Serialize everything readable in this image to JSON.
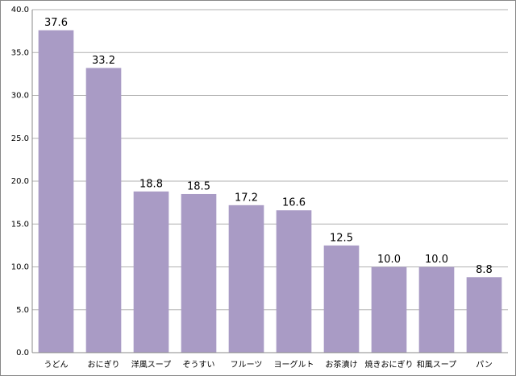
{
  "chart_data": {
    "type": "bar",
    "categories": [
      "うどん",
      "おにぎり",
      "洋風スープ",
      "ぞうすい",
      "フルーツ",
      "ヨーグルト",
      "お茶漬け",
      "焼きおにぎり",
      "和風スープ",
      "パン"
    ],
    "values": [
      37.6,
      33.2,
      18.8,
      18.5,
      17.2,
      16.6,
      12.5,
      10,
      10,
      8.8
    ],
    "value_labels": [
      "37.6",
      "33.2",
      "18.8",
      "18.5",
      "17.2",
      "16.6",
      "12.5",
      "10.0",
      "10.0",
      "8.8"
    ],
    "color": "#a99bc5",
    "ylim": [
      0,
      40
    ],
    "yticks": [
      {
        "value": 0,
        "label": "0.0"
      },
      {
        "value": 5,
        "label": "5.0"
      },
      {
        "value": 10,
        "label": "10.0"
      },
      {
        "value": 15,
        "label": "15.0"
      },
      {
        "value": 20,
        "label": "20.0"
      },
      {
        "value": 25,
        "label": "25.0"
      },
      {
        "value": 30,
        "label": "30.0"
      },
      {
        "value": 35,
        "label": "35.0"
      },
      {
        "value": 40,
        "label": "40.0"
      }
    ],
    "grid": true
  }
}
